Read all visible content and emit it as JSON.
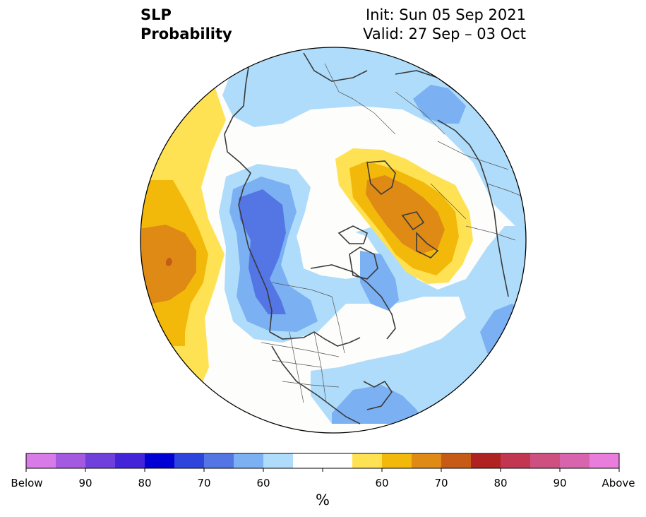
{
  "title": {
    "line1": "SLP",
    "line2": "Probability",
    "init": "Init: Sun 05 Sep 2021",
    "valid": "Valid: 27 Sep – 03 Oct"
  },
  "colorbar": {
    "unit": "%",
    "colors": [
      "#d87ae8",
      "#a35ae0",
      "#7040dc",
      "#4424d8",
      "#0000d4",
      "#2d45dc",
      "#5475e4",
      "#7bb0f2",
      "#aedcfa",
      "#ffffff",
      "#ffe253",
      "#f3b90a",
      "#de8a15",
      "#c65a17",
      "#b02222",
      "#c23652",
      "#cd5080",
      "#d964ae",
      "#e87ddc"
    ],
    "labels": [
      "Below",
      "90",
      "80",
      "70",
      "60",
      "60",
      "70",
      "80",
      "90",
      "Above"
    ]
  },
  "map": {
    "projection": "north-polar-stereographic",
    "colors": {
      "above_50": "#ffe253",
      "above_60": "#f3b90a",
      "above_70": "#de8a15",
      "above_80": "#c65a17",
      "below_50": "#aedcfa",
      "below_60": "#7bb0f2",
      "below_70": "#5475e4",
      "coast": "#3a3a3a",
      "border": "#444444"
    }
  }
}
